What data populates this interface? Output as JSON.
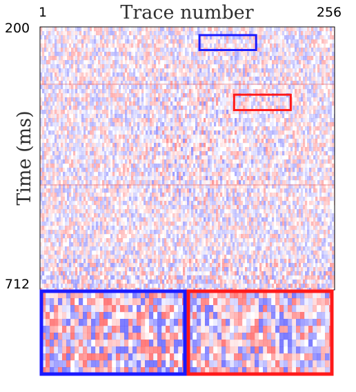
{
  "chart_data": {
    "type": "heatmap",
    "title": "Trace number",
    "xlabel": "Trace number",
    "ylabel": "Time (ms)",
    "x_tick_labels": [
      "1",
      "256"
    ],
    "y_tick_labels": [
      "200",
      "712"
    ],
    "xlim": [
      1,
      256
    ],
    "ylim": [
      200,
      712
    ],
    "colormap": [
      "#2222ff",
      "#ffffff",
      "#ff2222"
    ],
    "zoom_boxes": [
      {
        "color": "#1a1aff",
        "trace_range": [
          139,
          188
        ],
        "time_range": [
          216,
          245
        ]
      },
      {
        "color": "#ff1a1a",
        "trace_range": [
          169,
          218
        ],
        "time_range": [
          332,
          362
        ]
      }
    ]
  }
}
